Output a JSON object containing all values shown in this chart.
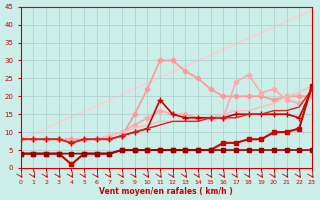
{
  "bg_color": "#cceee8",
  "grid_color": "#aacccc",
  "xlabel": "Vent moyen/en rafales ( km/h )",
  "xlabel_color": "#cc0000",
  "tick_color": "#cc0000",
  "xlim": [
    0,
    23
  ],
  "ylim": [
    0,
    45
  ],
  "xticks": [
    0,
    1,
    2,
    3,
    4,
    5,
    6,
    7,
    8,
    9,
    10,
    11,
    12,
    13,
    14,
    15,
    16,
    17,
    18,
    19,
    20,
    21,
    22,
    23
  ],
  "yticks": [
    0,
    5,
    10,
    15,
    20,
    25,
    30,
    35,
    40,
    45
  ],
  "lines": [
    {
      "x": [
        0,
        23
      ],
      "y": [
        8,
        44
      ],
      "color": "#ffcccc",
      "lw": 1.0,
      "marker": null,
      "ms": 0,
      "zorder": 1
    },
    {
      "x": [
        0,
        1,
        2,
        3,
        4,
        5,
        6,
        7,
        8,
        9,
        10,
        11,
        12,
        13,
        14,
        15,
        16,
        17,
        18,
        19,
        20,
        21,
        22,
        23
      ],
      "y": [
        8,
        8,
        8,
        8,
        8,
        8,
        8,
        8,
        9,
        15,
        22,
        30,
        30,
        27,
        25,
        22,
        20,
        20,
        20,
        20,
        19,
        20,
        20,
        20
      ],
      "color": "#ff9999",
      "lw": 1.2,
      "marker": "D",
      "ms": 2.5,
      "zorder": 2
    },
    {
      "x": [
        0,
        1,
        2,
        3,
        4,
        5,
        6,
        7,
        8,
        9,
        10,
        11,
        12,
        13,
        14,
        15,
        16,
        17,
        18,
        19,
        20,
        21,
        22,
        23
      ],
      "y": [
        8,
        8,
        8,
        8,
        7,
        8,
        8,
        9,
        10,
        12,
        14,
        16,
        15,
        15,
        14,
        14,
        14,
        24,
        26,
        21,
        22,
        19,
        18,
        20
      ],
      "color": "#ffaaaa",
      "lw": 1.2,
      "marker": "D",
      "ms": 2.5,
      "zorder": 2
    },
    {
      "x": [
        0,
        1,
        2,
        3,
        4,
        5,
        6,
        7,
        8,
        9,
        10,
        11,
        12,
        13,
        14,
        15,
        16,
        17,
        18,
        19,
        20,
        21,
        22,
        23
      ],
      "y": [
        8,
        8,
        8,
        8,
        7,
        8,
        8,
        9,
        10,
        11,
        12,
        13,
        13,
        13,
        13,
        14,
        15,
        16,
        16,
        17,
        18,
        20,
        21,
        23
      ],
      "color": "#ffbbbb",
      "lw": 1.0,
      "marker": null,
      "ms": 0,
      "zorder": 2
    },
    {
      "x": [
        0,
        1,
        2,
        3,
        4,
        5,
        6,
        7,
        8,
        9,
        10,
        11,
        12,
        13,
        14,
        15,
        16,
        17,
        18,
        19,
        20,
        21,
        22,
        23
      ],
      "y": [
        8,
        8,
        8,
        8,
        7,
        8,
        8,
        8,
        9,
        10,
        11,
        19,
        15,
        14,
        14,
        14,
        14,
        15,
        15,
        15,
        15,
        15,
        14,
        22
      ],
      "color": "#cc0000",
      "lw": 1.2,
      "marker": "+",
      "ms": 4,
      "zorder": 3
    },
    {
      "x": [
        0,
        1,
        2,
        3,
        4,
        5,
        6,
        7,
        8,
        9,
        10,
        11,
        12,
        13,
        14,
        15,
        16,
        17,
        18,
        19,
        20,
        21,
        22,
        23
      ],
      "y": [
        8,
        8,
        8,
        8,
        7,
        8,
        8,
        8,
        9,
        10,
        11,
        12,
        13,
        13,
        13,
        14,
        14,
        14,
        15,
        15,
        16,
        16,
        17,
        22
      ],
      "color": "#dd2222",
      "lw": 1.0,
      "marker": null,
      "ms": 0,
      "zorder": 3
    },
    {
      "x": [
        0,
        1,
        2,
        3,
        4,
        5,
        6,
        7,
        8,
        9,
        10,
        11,
        12,
        13,
        14,
        15,
        16,
        17,
        18,
        19,
        20,
        21,
        22,
        23
      ],
      "y": [
        4,
        4,
        4,
        4,
        1,
        4,
        4,
        4,
        5,
        5,
        5,
        5,
        5,
        5,
        5,
        5,
        7,
        7,
        8,
        8,
        10,
        10,
        11,
        23
      ],
      "color": "#cc0000",
      "lw": 1.5,
      "marker": "s",
      "ms": 2.5,
      "zorder": 5
    },
    {
      "x": [
        0,
        1,
        2,
        3,
        4,
        5,
        6,
        7,
        8,
        9,
        10,
        11,
        12,
        13,
        14,
        15,
        16,
        17,
        18,
        19,
        20,
        21,
        22,
        23
      ],
      "y": [
        4,
        4,
        4,
        4,
        4,
        4,
        4,
        4,
        5,
        5,
        5,
        5,
        5,
        5,
        5,
        5,
        5,
        5,
        5,
        5,
        5,
        5,
        5,
        5
      ],
      "color": "#990000",
      "lw": 1.2,
      "marker": "s",
      "ms": 2.5,
      "zorder": 6
    }
  ],
  "arrow_symbol": "↗",
  "arrow_color": "#cc0000"
}
